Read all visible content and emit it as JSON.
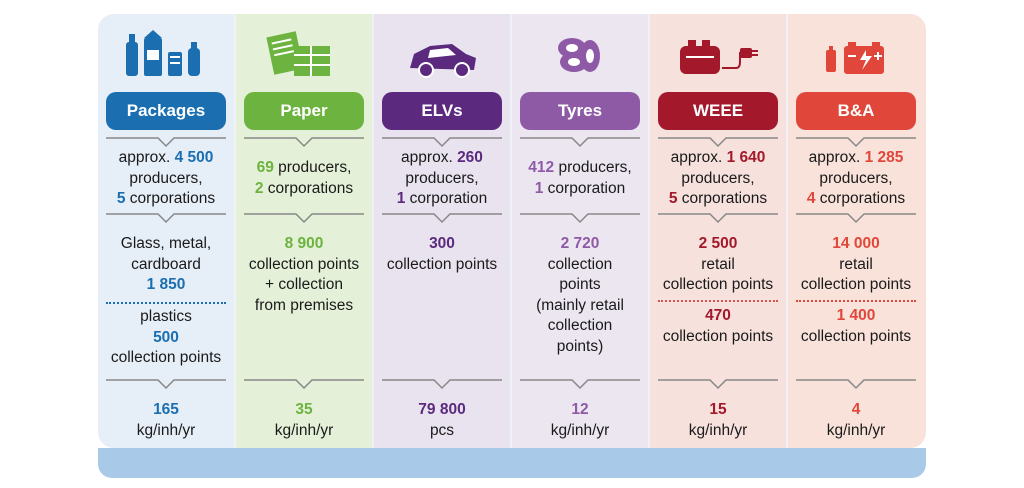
{
  "columns": [
    {
      "key": "packages",
      "title": "Packages",
      "color": "#1b6fb0",
      "bg": "#e6eef8",
      "icon": "bottles-cans-icon",
      "producers": {
        "prefix": "approx. ",
        "count": "4 500",
        "line2": "producers,",
        "corp_count": "5",
        "corp_label": " corporations"
      },
      "collection": {
        "line1": "Glass, metal,",
        "line2": "cardboard",
        "value1": "1 850",
        "line3": "plastics",
        "value2": "500",
        "line4": "collection points"
      },
      "rate": {
        "value": "165",
        "unit": "kg/inh/yr"
      }
    },
    {
      "key": "paper",
      "title": "Paper",
      "color": "#6cb33f",
      "bg": "#e4f1d8",
      "icon": "paper-stack-icon",
      "producers": {
        "count": "69",
        "label": " producers,",
        "corp_count": "2",
        "corp_label": " corporations"
      },
      "collection": {
        "value": "8 900",
        "line1": "collection points",
        "line2": "+ collection",
        "line3": "from premises"
      },
      "rate": {
        "value": "35",
        "unit": "kg/inh/yr"
      }
    },
    {
      "key": "elvs",
      "title": "ELVs",
      "color": "#5b2a7e",
      "bg": "#e8e3ef",
      "icon": "car-icon",
      "producers": {
        "prefix": "approx. ",
        "count": "260",
        "line2": "producers,",
        "corp_count": "1",
        "corp_label": " corporation"
      },
      "collection": {
        "value": "300",
        "line1": "collection points"
      },
      "rate": {
        "value": "79 800",
        "unit": "pcs"
      }
    },
    {
      "key": "tyres",
      "title": "Tyres",
      "color": "#8e5aa6",
      "bg": "#ece6f1",
      "icon": "tyres-icon",
      "producers": {
        "count": "412",
        "label": " producers,",
        "corp_count": "1",
        "corp_label": " corporation"
      },
      "collection": {
        "value": "2 720",
        "line1": "collection",
        "line2": "points",
        "line3": "(mainly retail",
        "line4": "collection",
        "line5": "points)"
      },
      "rate": {
        "value": "12",
        "unit": "kg/inh/yr"
      }
    },
    {
      "key": "weee",
      "title": "WEEE",
      "color": "#a3182a",
      "bg": "#f6e1dd",
      "icon": "toaster-plug-icon",
      "producers": {
        "prefix": "approx. ",
        "count": "1 640",
        "line2": "producers,",
        "corp_count": "5",
        "corp_label": " corporations"
      },
      "collection": {
        "value1": "2 500",
        "line1": "retail",
        "line2": "collection points",
        "value2": "470",
        "line3": "collection points"
      },
      "rate": {
        "value": "15",
        "unit": "kg/inh/yr"
      }
    },
    {
      "key": "ba",
      "title": "B&A",
      "color": "#e0473a",
      "bg": "#f9e2da",
      "icon": "battery-icon",
      "producers": {
        "prefix": "approx. ",
        "count": "1 285",
        "line2": "producers,",
        "corp_count": "4",
        "corp_label": " corporations"
      },
      "collection": {
        "value1": "14 000",
        "line1": "retail",
        "line2": "collection points",
        "value2": "1 400",
        "line3": "collection points"
      },
      "rate": {
        "value": "4",
        "unit": "kg/inh/yr"
      }
    }
  ]
}
